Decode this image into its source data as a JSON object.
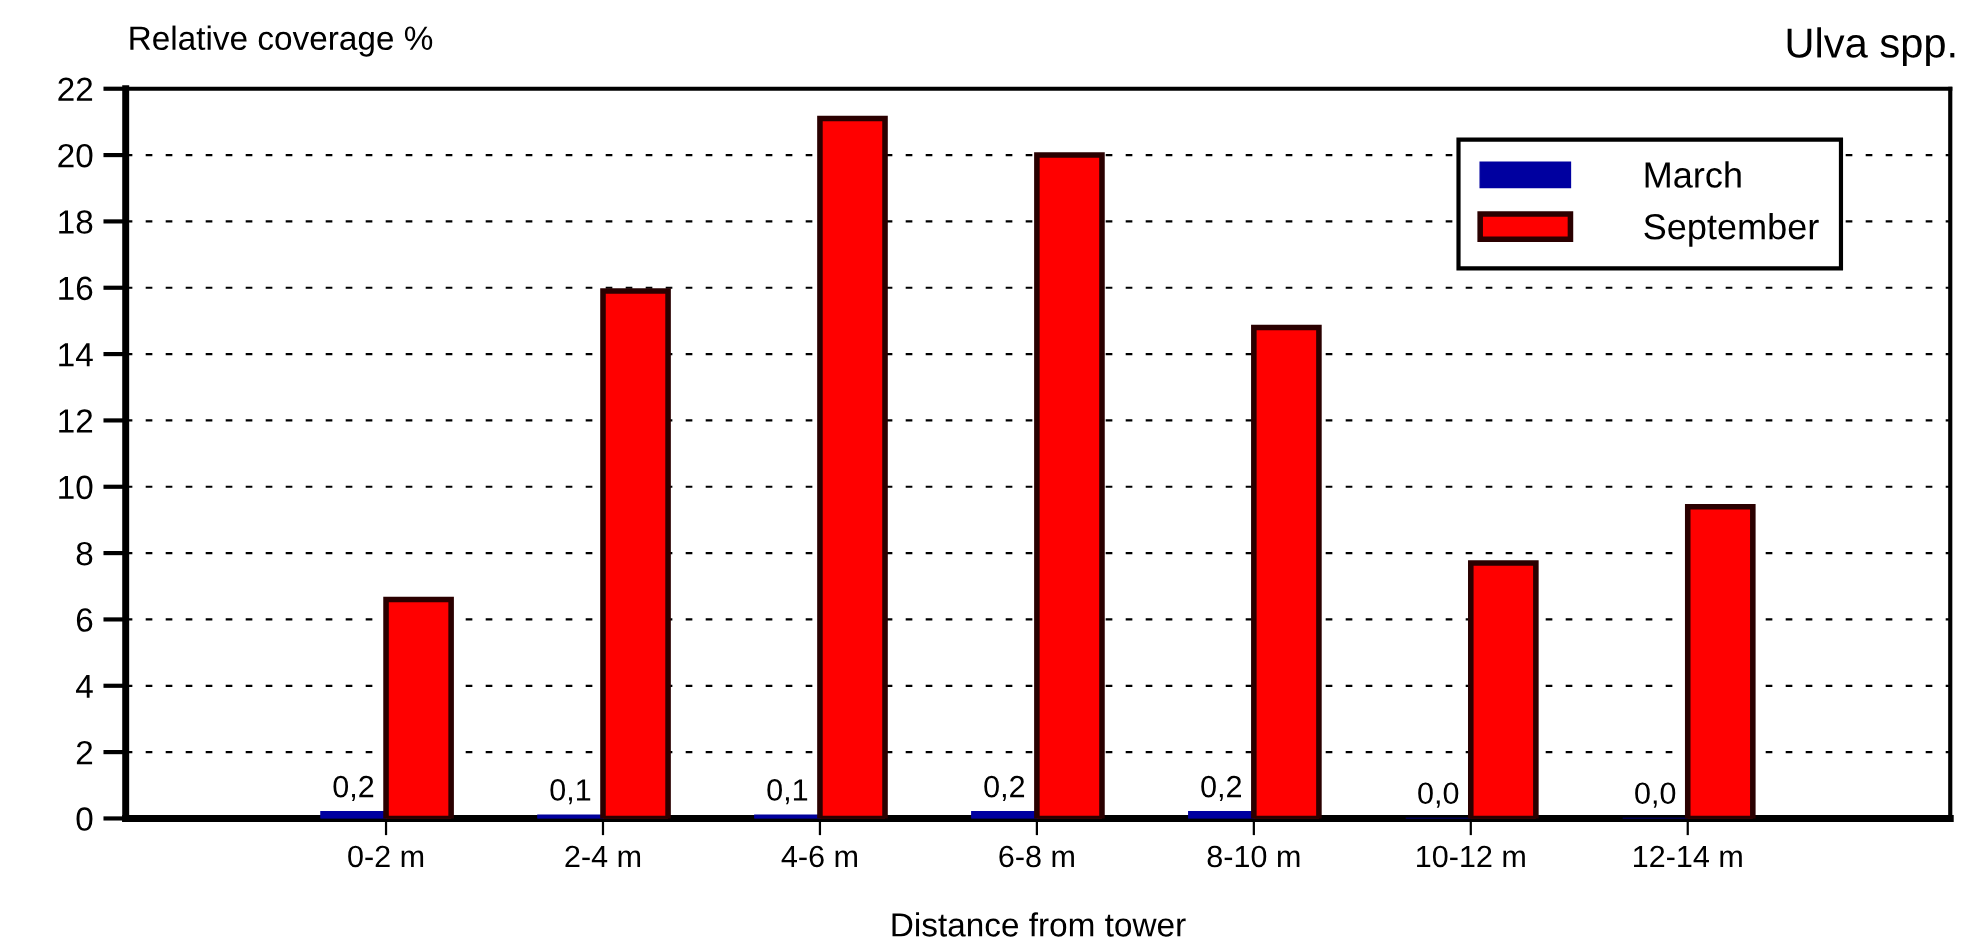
{
  "chart_data": {
    "type": "bar",
    "title": "Ulva spp.",
    "xlabel": "Distance from tower",
    "ylabel": "Relative coverage %",
    "categories": [
      "0-2 m",
      "2-4 m",
      "4-6 m",
      "6-8 m",
      "8-10 m",
      "10-12 m",
      "12-14 m"
    ],
    "series": [
      {
        "name": "March",
        "color": "#0000a0",
        "values": [
          0.2,
          0.1,
          0.1,
          0.2,
          0.2,
          0.0,
          0.0
        ],
        "value_labels": [
          "0,2",
          "0,1",
          "0,1",
          "0,2",
          "0,2",
          "0,0",
          "0,0"
        ]
      },
      {
        "name": "September",
        "color": "#ff0000",
        "values": [
          6.6,
          15.9,
          21.1,
          20.0,
          14.8,
          7.7,
          9.4
        ]
      }
    ],
    "ylim": [
      0,
      22
    ],
    "yticks": [
      0,
      2,
      4,
      6,
      8,
      10,
      12,
      14,
      16,
      18,
      20,
      22
    ],
    "grid": "y",
    "legend": "top right"
  }
}
